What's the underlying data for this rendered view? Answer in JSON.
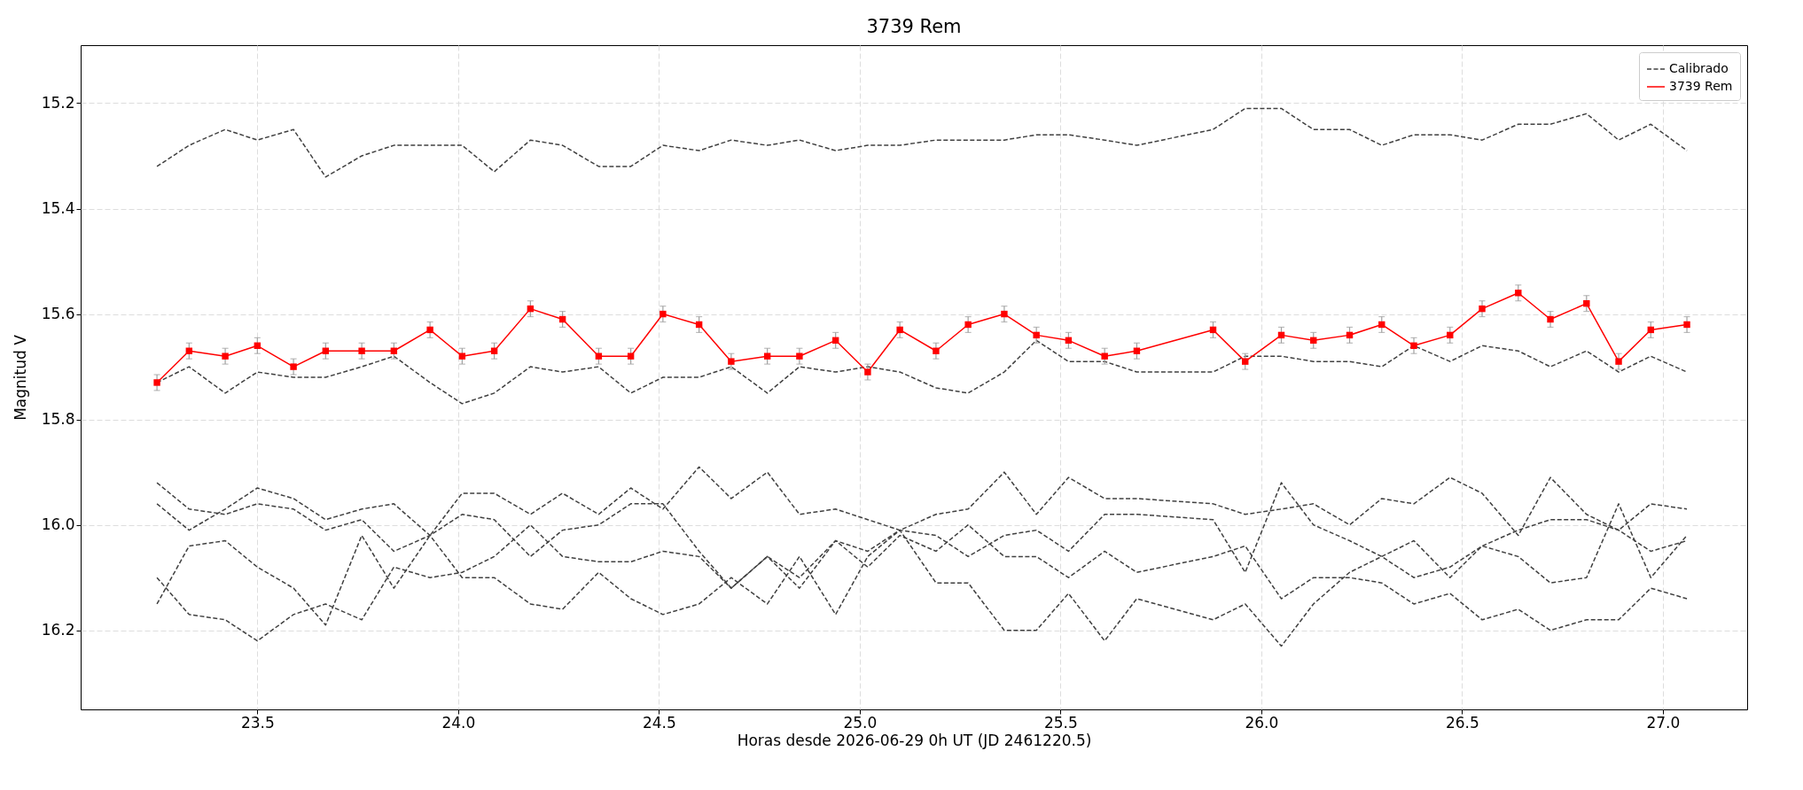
{
  "chart_data": {
    "type": "line",
    "title": "3739 Rem",
    "xlabel": "Horas desde 2026-06-29 0h UT (JD 2461220.5)",
    "ylabel": "Magnitud V",
    "x": [
      23.25,
      23.33,
      23.42,
      23.5,
      23.59,
      23.67,
      23.76,
      23.84,
      23.93,
      24.01,
      24.09,
      24.18,
      24.26,
      24.35,
      24.43,
      24.51,
      24.6,
      24.68,
      24.77,
      24.85,
      24.94,
      25.02,
      25.1,
      25.19,
      25.27,
      25.36,
      25.44,
      25.52,
      25.61,
      25.69,
      25.88,
      25.96,
      26.05,
      26.13,
      26.22,
      26.3,
      26.38,
      26.47,
      26.55,
      26.64,
      26.72,
      26.81,
      26.89,
      26.97,
      27.06
    ],
    "xlim": [
      23.06,
      27.21
    ],
    "ylim": [
      16.35,
      15.09
    ],
    "xticks": [
      23.5,
      {
        "value": 24,
        "label": "24.0"
      },
      24.5,
      {
        "value": 25,
        "label": "25.0"
      },
      25.5,
      {
        "value": 26,
        "label": "26.0"
      },
      26.5,
      {
        "value": 27,
        "label": "27.0"
      }
    ],
    "yticks": [
      15.2,
      15.4,
      15.6,
      15.8,
      {
        "value": 16,
        "label": "16.0"
      },
      16.2
    ],
    "grid": true,
    "legend": "top right",
    "series": [
      {
        "name": "Calibrado",
        "type": "line",
        "color": "#404040",
        "line_style": "dashed",
        "marker": "none",
        "values": [
          15.32,
          15.28,
          15.25,
          15.27,
          15.25,
          15.34,
          15.3,
          15.28,
          15.28,
          15.28,
          15.33,
          15.27,
          15.28,
          15.32,
          15.32,
          15.28,
          15.29,
          15.27,
          15.28,
          15.27,
          15.29,
          15.28,
          15.28,
          15.27,
          15.27,
          15.27,
          15.26,
          15.26,
          15.27,
          15.28,
          15.25,
          15.21,
          15.21,
          15.25,
          15.25,
          15.28,
          15.26,
          15.26,
          15.27,
          15.24,
          15.24,
          15.22,
          15.27,
          15.24,
          15.29
        ]
      },
      {
        "type": "line",
        "color": "#404040",
        "line_style": "dashed",
        "marker": "none",
        "values": [
          15.73,
          15.7,
          15.75,
          15.71,
          15.72,
          15.72,
          15.7,
          15.68,
          15.73,
          15.77,
          15.75,
          15.7,
          15.71,
          15.7,
          15.75,
          15.72,
          15.72,
          15.7,
          15.75,
          15.7,
          15.71,
          15.7,
          15.71,
          15.74,
          15.75,
          15.71,
          15.65,
          15.69,
          15.69,
          15.71,
          15.71,
          15.68,
          15.68,
          15.69,
          15.69,
          15.7,
          15.66,
          15.69,
          15.66,
          15.67,
          15.7,
          15.67,
          15.71,
          15.68,
          15.71
        ]
      },
      {
        "type": "line",
        "color": "#404040",
        "line_style": "dashed",
        "marker": "none",
        "values": [
          15.92,
          15.97,
          15.98,
          15.96,
          15.97,
          16.01,
          15.99,
          16.05,
          16.02,
          15.98,
          15.99,
          16.06,
          16.01,
          16.0,
          15.96,
          15.96,
          16.05,
          16.12,
          16.06,
          16.1,
          16.03,
          16.08,
          16.02,
          16.05,
          16.0,
          16.06,
          16.06,
          16.1,
          16.05,
          16.09,
          16.06,
          16.04,
          16.14,
          16.1,
          16.1,
          16.11,
          16.15,
          16.13,
          16.18,
          16.16,
          16.2,
          16.18,
          16.18,
          16.12,
          16.14
        ]
      },
      {
        "type": "line",
        "color": "#404040",
        "line_style": "dashed",
        "marker": "none",
        "values": [
          15.96,
          16.01,
          15.97,
          15.93,
          15.95,
          15.99,
          15.97,
          15.96,
          16.02,
          16.1,
          16.1,
          16.15,
          16.16,
          16.09,
          16.14,
          16.17,
          16.15,
          16.1,
          16.15,
          16.06,
          16.17,
          16.06,
          16.01,
          16.02,
          16.06,
          16.02,
          16.01,
          16.05,
          15.98,
          15.98,
          15.99,
          16.09,
          15.92,
          16.0,
          16.03,
          16.06,
          16.1,
          16.08,
          16.04,
          16.06,
          16.11,
          16.1,
          15.96,
          16.1,
          16.02
        ]
      },
      {
        "type": "line",
        "color": "#404040",
        "line_style": "dashed",
        "marker": "none",
        "values": [
          16.1,
          16.17,
          16.18,
          16.22,
          16.17,
          16.15,
          16.18,
          16.08,
          16.1,
          16.09,
          16.06,
          16.0,
          16.06,
          16.07,
          16.07,
          16.05,
          16.06,
          16.12,
          16.06,
          16.12,
          16.03,
          16.05,
          16.01,
          16.11,
          16.11,
          16.2,
          16.2,
          16.13,
          16.22,
          16.14,
          16.18,
          16.15,
          16.23,
          16.15,
          16.09,
          16.06,
          16.03,
          16.1,
          16.04,
          16.01,
          15.99,
          15.99,
          16.01,
          16.05,
          16.03
        ]
      },
      {
        "type": "line",
        "color": "#404040",
        "line_style": "dashed",
        "marker": "none",
        "values": [
          16.15,
          16.04,
          16.03,
          16.08,
          16.12,
          16.19,
          16.02,
          16.12,
          16.02,
          15.94,
          15.94,
          15.98,
          15.94,
          15.98,
          15.93,
          15.97,
          15.89,
          15.95,
          15.9,
          15.98,
          15.97,
          15.99,
          16.01,
          15.98,
          15.97,
          15.9,
          15.98,
          15.91,
          15.95,
          15.95,
          15.96,
          15.98,
          15.97,
          15.96,
          16.0,
          15.95,
          15.96,
          15.91,
          15.94,
          16.02,
          15.91,
          15.98,
          16.01,
          15.96,
          15.97
        ]
      },
      {
        "name": "3739 Rem",
        "color": "#ff0000",
        "line_style": "solid",
        "marker": "square",
        "values": [
          15.73,
          15.67,
          15.68,
          15.66,
          15.7,
          15.67,
          15.67,
          15.67,
          15.63,
          15.68,
          15.67,
          15.59,
          15.61,
          15.68,
          15.68,
          15.6,
          15.62,
          15.69,
          15.68,
          15.68,
          15.65,
          15.71,
          15.63,
          15.67,
          15.62,
          15.6,
          15.64,
          15.65,
          15.68,
          15.67,
          15.63,
          15.69,
          15.64,
          15.65,
          15.64,
          15.62,
          15.66,
          15.64,
          15.59,
          15.56,
          15.61,
          15.58,
          15.69,
          15.63,
          15.62
        ],
        "errors": [
          0.015,
          0.015,
          0.015,
          0.015,
          0.015,
          0.015,
          0.015,
          0.015,
          0.015,
          0.015,
          0.015,
          0.015,
          0.015,
          0.015,
          0.015,
          0.015,
          0.015,
          0.015,
          0.015,
          0.015,
          0.015,
          0.015,
          0.015,
          0.015,
          0.015,
          0.015,
          0.015,
          0.015,
          0.015,
          0.015,
          0.015,
          0.015,
          0.015,
          0.015,
          0.015,
          0.015,
          0.015,
          0.015,
          0.015,
          0.015,
          0.015,
          0.015,
          0.015,
          0.015,
          0.015
        ]
      }
    ]
  }
}
